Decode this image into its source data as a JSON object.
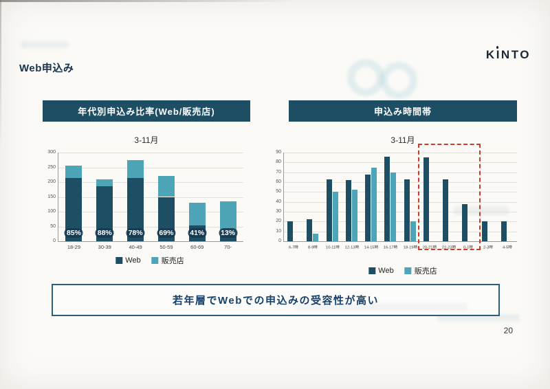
{
  "page": {
    "slide_title": "Web申込み",
    "logo_text": "KINTO",
    "page_number": "20",
    "callout_text": "若年層でWebでの申込みの受容性が高い"
  },
  "colors": {
    "navy": "#1d4e63",
    "teal": "#4fa5b8",
    "header_bg": "#1d4e63",
    "highlight_red": "#cc3b2a"
  },
  "chart_data": [
    {
      "type": "bar-stacked",
      "title": "年代別申込み比率(Web/販売店)",
      "subtitle": "3-11月",
      "categories": [
        "18-29",
        "30-39",
        "40-49",
        "50-59",
        "60-69",
        "70-"
      ],
      "series": [
        {
          "name": "Web",
          "color_key": "navy",
          "values": [
            215,
            185,
            215,
            150,
            53,
            18
          ]
        },
        {
          "name": "販売店",
          "color_key": "teal",
          "values": [
            40,
            25,
            60,
            70,
            77,
            117
          ]
        }
      ],
      "labels": [
        "85%",
        "88%",
        "78%",
        "69%",
        "41%",
        "13%"
      ],
      "ylim": [
        0,
        300
      ],
      "yticks": [
        0,
        50,
        100,
        150,
        200,
        250,
        300
      ],
      "legend_position": "bottom",
      "grid": true
    },
    {
      "type": "bar-grouped",
      "title": "申込み時間帯",
      "subtitle": "3-11月",
      "categories": [
        "6-7時",
        "8-9時",
        "10-11時",
        "12-13時",
        "14-15時",
        "16-17時",
        "18-19時",
        "20-21時",
        "22-23時",
        "0-1時",
        "2-3時",
        "4-5時"
      ],
      "series": [
        {
          "name": "Web",
          "color_key": "navy",
          "values": [
            20,
            22,
            63,
            62,
            68,
            86,
            63,
            85,
            63,
            38,
            20,
            20
          ]
        },
        {
          "name": "販売店",
          "color_key": "teal",
          "values": [
            0,
            8,
            50,
            52,
            75,
            70,
            20,
            0,
            0,
            0,
            0,
            0
          ]
        }
      ],
      "ylim": [
        0,
        90
      ],
      "yticks": [
        0,
        10,
        20,
        30,
        40,
        50,
        60,
        70,
        80,
        90
      ],
      "legend_position": "bottom",
      "grid": true,
      "highlight": {
        "from_index": 7,
        "to_index": 9
      }
    }
  ]
}
